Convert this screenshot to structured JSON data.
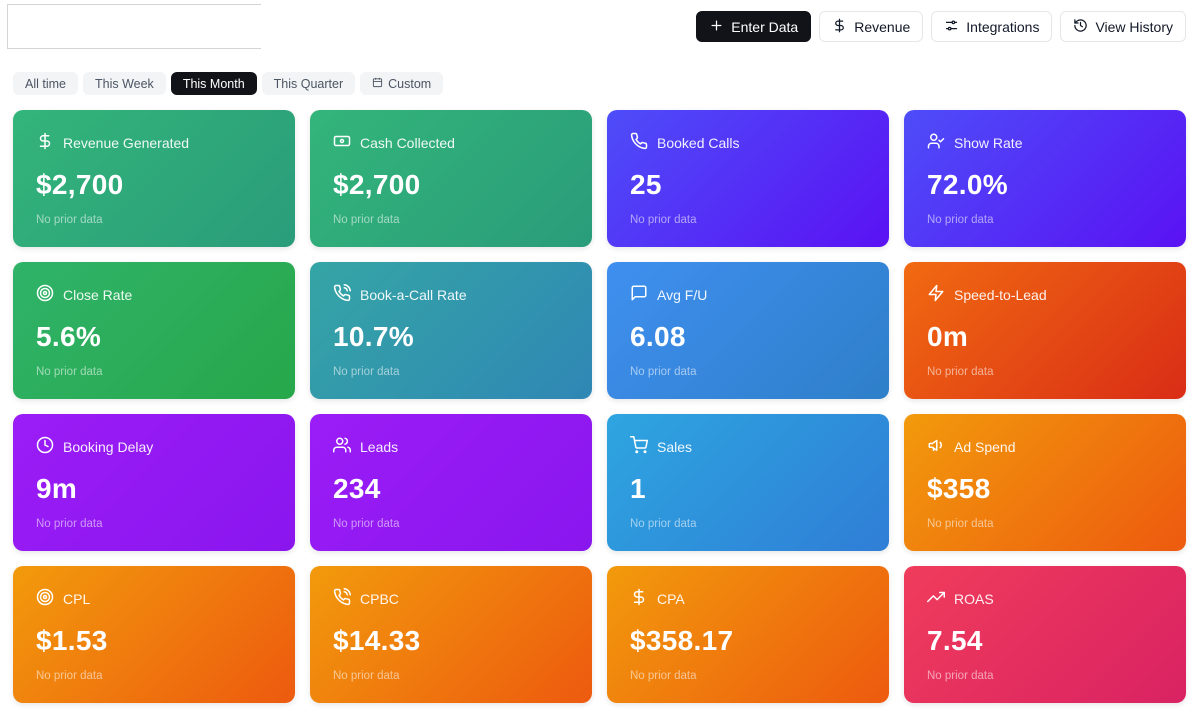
{
  "toolbar": {
    "enter_data": "Enter Data",
    "revenue": "Revenue",
    "integrations": "Integrations",
    "view_history": "View History"
  },
  "filters": [
    {
      "label": "All time",
      "active": false
    },
    {
      "label": "This Week",
      "active": false
    },
    {
      "label": "This Month",
      "active": true
    },
    {
      "label": "This Quarter",
      "active": false
    },
    {
      "label": "Custom",
      "active": false,
      "icon": "calendar-icon"
    }
  ],
  "cards": [
    {
      "label": "Revenue Generated",
      "value": "$2,700",
      "sub": "No prior data",
      "icon": "dollar-icon"
    },
    {
      "label": "Cash Collected",
      "value": "$2,700",
      "sub": "No prior data",
      "icon": "banknote-icon"
    },
    {
      "label": "Booked Calls",
      "value": "25",
      "sub": "No prior data",
      "icon": "phone-icon"
    },
    {
      "label": "Show Rate",
      "value": "72.0%",
      "sub": "No prior data",
      "icon": "user-check-icon"
    },
    {
      "label": "Close Rate",
      "value": "5.6%",
      "sub": "No prior data",
      "icon": "target-icon"
    },
    {
      "label": "Book-a-Call Rate",
      "value": "10.7%",
      "sub": "No prior data",
      "icon": "phone-call-icon"
    },
    {
      "label": "Avg F/U",
      "value": "6.08",
      "sub": "No prior data",
      "icon": "message-icon"
    },
    {
      "label": "Speed-to-Lead",
      "value": "0m",
      "sub": "No prior data",
      "icon": "zap-icon"
    },
    {
      "label": "Booking Delay",
      "value": "9m",
      "sub": "No prior data",
      "icon": "clock-icon"
    },
    {
      "label": "Leads",
      "value": "234",
      "sub": "No prior data",
      "icon": "users-icon"
    },
    {
      "label": "Sales",
      "value": "1",
      "sub": "No prior data",
      "icon": "cart-icon"
    },
    {
      "label": "Ad Spend",
      "value": "$358",
      "sub": "No prior data",
      "icon": "megaphone-icon"
    },
    {
      "label": "CPL",
      "value": "$1.53",
      "sub": "No prior data",
      "icon": "target-icon"
    },
    {
      "label": "CPBC",
      "value": "$14.33",
      "sub": "No prior data",
      "icon": "phone-call-icon"
    },
    {
      "label": "CPA",
      "value": "$358.17",
      "sub": "No prior data",
      "icon": "dollar-icon"
    },
    {
      "label": "ROAS",
      "value": "7.54",
      "sub": "No prior data",
      "icon": "trending-up-icon"
    }
  ]
}
